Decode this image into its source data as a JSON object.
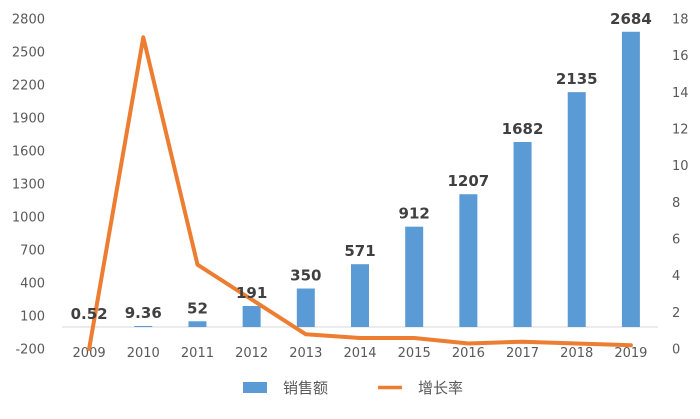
{
  "chart_data": {
    "type": "bar",
    "categories": [
      "2009",
      "2010",
      "2011",
      "2012",
      "2013",
      "2014",
      "2015",
      "2016",
      "2017",
      "2018",
      "2019"
    ],
    "series": [
      {
        "name": "销售额",
        "type": "bar",
        "axis": "left",
        "color": "#5B9BD5",
        "values": [
          0.52,
          9.36,
          52,
          191,
          350,
          571,
          912,
          1207,
          1682,
          2135,
          2684
        ],
        "labels": [
          "0.52",
          "9.36",
          "52",
          "191",
          "350",
          "571",
          "912",
          "1207",
          "1682",
          "2135",
          "2684"
        ]
      },
      {
        "name": "增长率",
        "type": "line",
        "axis": "right",
        "color": "#ED7D31",
        "values": [
          0,
          17,
          4.6,
          2.7,
          0.8,
          0.6,
          0.6,
          0.3,
          0.4,
          0.3,
          0.2
        ]
      }
    ],
    "y_left": {
      "min": -200,
      "max": 2800,
      "ticks": [
        "-200",
        "100",
        "400",
        "700",
        "1000",
        "1300",
        "1600",
        "1900",
        "2200",
        "2500",
        "2800"
      ]
    },
    "y_right": {
      "min": 0,
      "max": 18,
      "ticks": [
        "0",
        "2",
        "4",
        "6",
        "8",
        "10",
        "12",
        "14",
        "16",
        "18"
      ]
    },
    "xlabel": "",
    "ylabel": "",
    "title": "",
    "legend_position": "bottom",
    "grid": false
  }
}
